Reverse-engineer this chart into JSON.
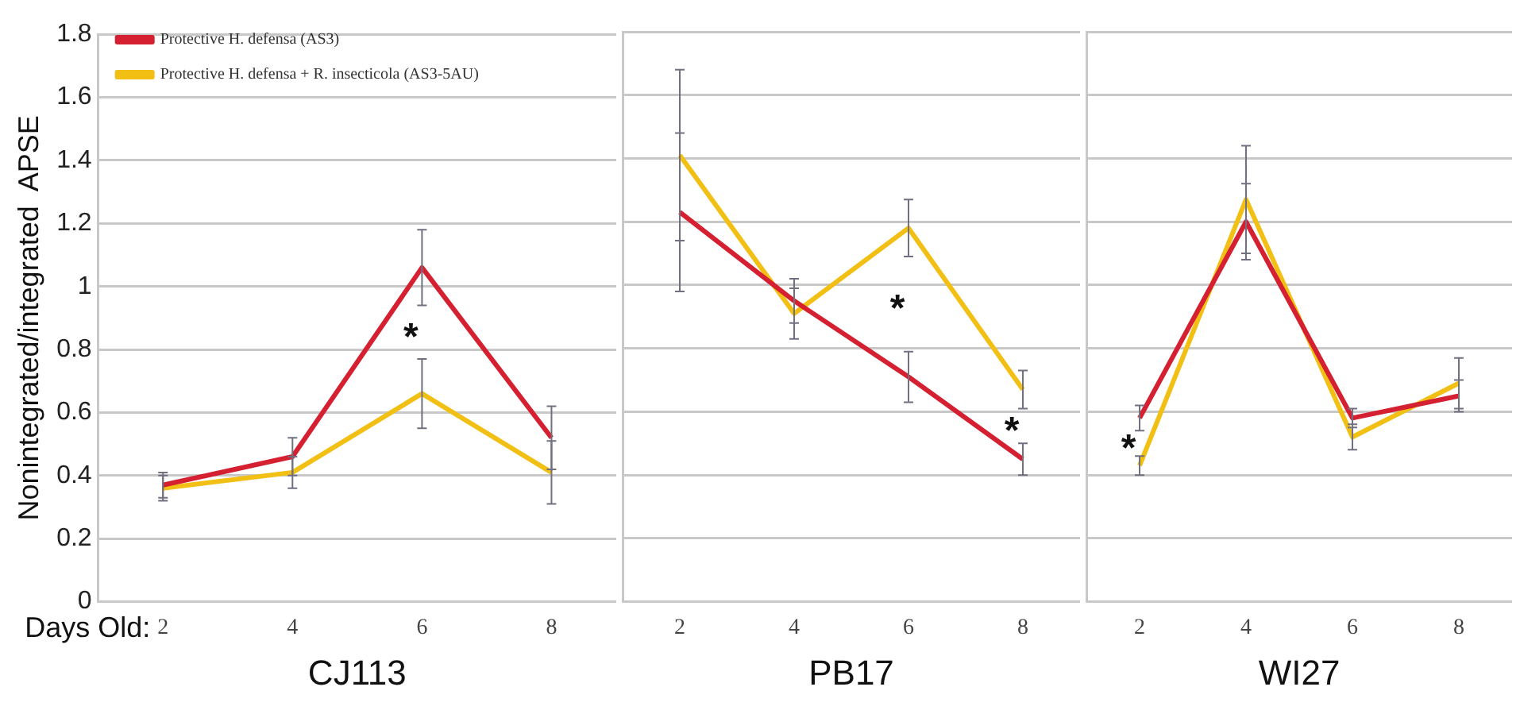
{
  "chart_data": [
    {
      "type": "line",
      "ylabel": "Nonintegrated/integrated  APSE",
      "xlabel": "CJ113",
      "categories": [
        "2",
        "4",
        "6",
        "8"
      ],
      "ylim": [
        0,
        1.8
      ],
      "yticks": [
        0,
        0.2,
        0.4,
        0.6,
        0.8,
        1,
        1.2,
        1.4,
        1.6,
        1.8
      ],
      "grid": "y",
      "legend": "top left",
      "series": [
        {
          "name": "Protective H. defensa (AS3)",
          "color": "#d42030",
          "values": [
            0.37,
            0.46,
            1.06,
            0.52
          ],
          "errors": [
            0.04,
            0.06,
            0.12,
            0.1
          ]
        },
        {
          "name": "Protective H. defensa + R. insecticola (AS3-5AU)",
          "color": "#f2c014",
          "values": [
            0.36,
            0.41,
            0.66,
            0.41
          ],
          "errors": [
            0.04,
            0.05,
            0.11,
            0.1
          ]
        }
      ],
      "annotations": [
        "Days Old:",
        "*"
      ]
    },
    {
      "type": "line",
      "xlabel": "PB17",
      "categories": [
        "2",
        "4",
        "6",
        "8"
      ],
      "ylim": [
        0,
        1.8
      ],
      "yticks": [
        0,
        0.2,
        0.4,
        0.6,
        0.8,
        1,
        1.2,
        1.4,
        1.6,
        1.8
      ],
      "grid": "y",
      "tick_labels": "x",
      "series": [
        {
          "color": "#d42030",
          "values": [
            1.23,
            0.95,
            0.71,
            0.45
          ],
          "errors": [
            0.25,
            0.07,
            0.08,
            0.05
          ]
        },
        {
          "color": "#f2c014",
          "values": [
            1.41,
            0.91,
            1.18,
            0.67
          ],
          "errors": [
            0.27,
            0.08,
            0.09,
            0.06
          ]
        }
      ],
      "annotations": [
        "*",
        "*"
      ]
    },
    {
      "type": "line",
      "xlabel": "WI27",
      "categories": [
        "2",
        "4",
        "6",
        "8"
      ],
      "ylim": [
        0,
        1.8
      ],
      "yticks": [
        0,
        0.2,
        0.4,
        0.6,
        0.8,
        1,
        1.2,
        1.4,
        1.6,
        1.8
      ],
      "grid": "y",
      "tick_labels": "x",
      "series": [
        {
          "color": "#d42030",
          "values": [
            0.58,
            1.2,
            0.58,
            0.65
          ],
          "errors": [
            0.04,
            0.12,
            0.03,
            0.05
          ]
        },
        {
          "color": "#f2c014",
          "values": [
            0.43,
            1.27,
            0.52,
            0.69
          ],
          "errors": [
            0.03,
            0.17,
            0.04,
            0.08
          ]
        }
      ],
      "annotations": [
        "*"
      ]
    }
  ]
}
